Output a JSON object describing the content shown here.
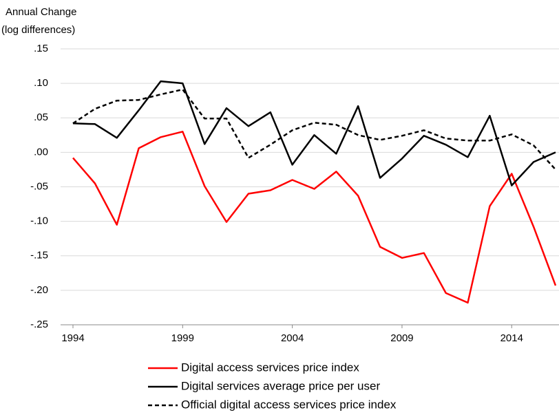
{
  "chart_data": {
    "type": "line",
    "ylabel": [
      "Annual Change",
      "(log differences)"
    ],
    "x": [
      1994,
      1995,
      1996,
      1997,
      1998,
      1999,
      2000,
      2001,
      2002,
      2003,
      2004,
      2005,
      2006,
      2007,
      2008,
      2009,
      2010,
      2011,
      2012,
      2013,
      2014,
      2015,
      2016
    ],
    "xlim": [
      1994,
      2016
    ],
    "xticks": [
      1994,
      1999,
      2004,
      2009,
      2014
    ],
    "ylim": [
      -0.25,
      0.15
    ],
    "yticks": [
      {
        "value": -0.25,
        "label": "-.25"
      },
      {
        "value": -0.2,
        "label": "-.20"
      },
      {
        "value": -0.15,
        "label": "-.15"
      },
      {
        "value": -0.1,
        "label": "-.10"
      },
      {
        "value": -0.05,
        "label": "-.05"
      },
      {
        "value": 0,
        "label": ".00"
      },
      {
        "value": 0.05,
        "label": ".05"
      },
      {
        "value": 0.1,
        "label": ".10"
      },
      {
        "value": 0.15,
        "label": ".15"
      }
    ],
    "grid": true,
    "legend": "bottom",
    "series": [
      {
        "name": "Digital access services price index",
        "color": "#ff0000",
        "dashed": false,
        "values": [
          -0.008,
          -0.045,
          -0.105,
          0.006,
          0.022,
          0.03,
          -0.049,
          -0.101,
          -0.06,
          -0.055,
          -0.04,
          -0.053,
          -0.028,
          -0.063,
          -0.137,
          -0.153,
          -0.146,
          -0.204,
          -0.218,
          -0.078,
          -0.031,
          -0.108,
          -0.193
        ]
      },
      {
        "name": "Digital services average price per user",
        "color": "#000000",
        "dashed": false,
        "values": [
          0.042,
          0.041,
          0.021,
          0.061,
          0.103,
          0.1,
          0.012,
          0.064,
          0.038,
          0.058,
          -0.018,
          0.025,
          -0.002,
          0.067,
          -0.037,
          -0.009,
          0.024,
          0.011,
          -0.007,
          0.053,
          -0.048,
          -0.014,
          0.0
        ]
      },
      {
        "name": "Official digital access services price index",
        "color": "#000000",
        "dashed": true,
        "values": [
          0.042,
          0.063,
          0.075,
          0.076,
          0.084,
          0.091,
          0.049,
          0.049,
          -0.008,
          0.011,
          0.032,
          0.043,
          0.04,
          0.025,
          0.018,
          0.024,
          0.032,
          0.02,
          0.017,
          0.017,
          0.026,
          0.01,
          -0.025
        ]
      }
    ]
  }
}
